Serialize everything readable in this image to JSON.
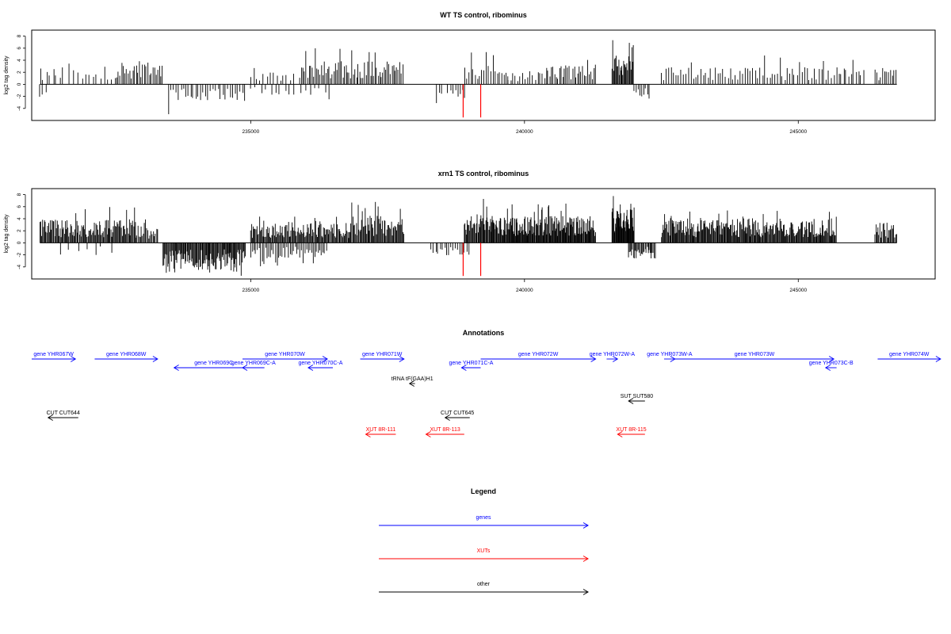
{
  "chart_data": [
    {
      "type": "bar",
      "title": "WT TS control, ribominus",
      "ylabel": "log2 tag density",
      "xlim": [
        231000,
        247500
      ],
      "ylim": [
        -6,
        9
      ],
      "yticks": [
        -4,
        -2,
        0,
        2,
        4,
        6,
        8
      ],
      "xticks": [
        235000,
        240000,
        245000
      ],
      "xticklabels": [
        "235000",
        "240000",
        "245000"
      ],
      "highlight_color": "#ff0000",
      "bar_color": "#000000",
      "highlights": [
        {
          "x": 238880,
          "y": -5.5
        },
        {
          "x": 239200,
          "y": -5.5
        }
      ],
      "segments": [
        {
          "x0": 231150,
          "x1": 231600,
          "strand": "plus",
          "max": 3.5,
          "mean": 2.0,
          "step": 60
        },
        {
          "x0": 231150,
          "x1": 231250,
          "strand": "minus",
          "max": -2.1,
          "mean": -1.8,
          "step": 50
        },
        {
          "x0": 231700,
          "x1": 232550,
          "strand": "plus",
          "max": 3.5,
          "mean": 1.7,
          "step": 70
        },
        {
          "x0": 232550,
          "x1": 233400,
          "strand": "plus",
          "max": 6.4,
          "mean": 2.6,
          "step": 30
        },
        {
          "x0": 233500,
          "x1": 234900,
          "strand": "minus",
          "max": -5.5,
          "mean": -1.9,
          "step": 45
        },
        {
          "x0": 235000,
          "x1": 235800,
          "strand": "plus",
          "max": 3.0,
          "mean": 1.5,
          "step": 60
        },
        {
          "x0": 235000,
          "x1": 236500,
          "strand": "minus",
          "max": -3.0,
          "mean": -1.2,
          "step": 90
        },
        {
          "x0": 235900,
          "x1": 237800,
          "strand": "plus",
          "max": 6.2,
          "mean": 2.6,
          "step": 28
        },
        {
          "x0": 238400,
          "x1": 238500,
          "strand": "minus",
          "max": -3.5,
          "mean": -2.5,
          "step": 40
        },
        {
          "x0": 238600,
          "x1": 238950,
          "strand": "minus",
          "max": -2.7,
          "mean": -1.5,
          "step": 45
        },
        {
          "x0": 238900,
          "x1": 239700,
          "strand": "plus",
          "max": 5.4,
          "mean": 2.1,
          "step": 40
        },
        {
          "x0": 239700,
          "x1": 240400,
          "strand": "plus",
          "max": 4.5,
          "mean": 1.5,
          "step": 45
        },
        {
          "x0": 240400,
          "x1": 241300,
          "strand": "plus",
          "max": 4.2,
          "mean": 2.3,
          "step": 30
        },
        {
          "x0": 241600,
          "x1": 242000,
          "strand": "plus",
          "max": 8.2,
          "mean": 3.7,
          "step": 15
        },
        {
          "x0": 242000,
          "x1": 242300,
          "strand": "minus",
          "max": -2.6,
          "mean": -1.6,
          "step": 35
        },
        {
          "x0": 242500,
          "x1": 246200,
          "strand": "plus",
          "max": 4.8,
          "mean": 1.9,
          "step": 45
        },
        {
          "x0": 246400,
          "x1": 246800,
          "strand": "plus",
          "max": 3.7,
          "mean": 1.8,
          "step": 35
        }
      ]
    },
    {
      "type": "bar",
      "title": "xrn1 TS control, ribominus",
      "ylabel": "log2 tag density",
      "xlim": [
        231000,
        247500
      ],
      "ylim": [
        -6,
        9
      ],
      "yticks": [
        -4,
        -2,
        0,
        2,
        4,
        6,
        8
      ],
      "xticks": [
        235000,
        240000,
        245000
      ],
      "xticklabels": [
        "235000",
        "240000",
        "245000"
      ],
      "highlight_color": "#ff0000",
      "bar_color": "#000000",
      "highlights": [
        {
          "x": 238880,
          "y": -5.5
        },
        {
          "x": 239200,
          "y": -5.5
        }
      ],
      "segments": [
        {
          "x0": 231150,
          "x1": 232900,
          "strand": "plus",
          "max": 6.2,
          "mean": 2.6,
          "step": 16
        },
        {
          "x0": 231500,
          "x1": 232600,
          "strand": "minus",
          "max": -2.3,
          "mean": -1.4,
          "step": 160
        },
        {
          "x0": 232900,
          "x1": 233300,
          "strand": "plus",
          "max": 4.0,
          "mean": 2.0,
          "step": 20
        },
        {
          "x0": 233400,
          "x1": 234900,
          "strand": "minus",
          "max": -5.5,
          "mean": -3.0,
          "step": 14
        },
        {
          "x0": 235000,
          "x1": 236800,
          "strand": "plus",
          "max": 4.5,
          "mean": 2.2,
          "step": 16
        },
        {
          "x0": 235000,
          "x1": 236400,
          "strand": "minus",
          "max": -4.0,
          "mean": -1.8,
          "step": 30
        },
        {
          "x0": 236800,
          "x1": 237800,
          "strand": "plus",
          "max": 7.0,
          "mean": 3.0,
          "step": 16
        },
        {
          "x0": 238300,
          "x1": 239000,
          "strand": "minus",
          "max": -3.8,
          "mean": -1.5,
          "step": 40
        },
        {
          "x0": 238900,
          "x1": 239400,
          "strand": "plus",
          "max": 8.0,
          "mean": 3.2,
          "step": 14
        },
        {
          "x0": 239400,
          "x1": 241300,
          "strand": "plus",
          "max": 6.6,
          "mean": 3.0,
          "step": 12
        },
        {
          "x0": 241600,
          "x1": 242000,
          "strand": "plus",
          "max": 8.4,
          "mean": 4.0,
          "step": 10
        },
        {
          "x0": 241900,
          "x1": 242400,
          "strand": "minus",
          "max": -3.1,
          "mean": -1.8,
          "step": 18
        },
        {
          "x0": 242500,
          "x1": 245700,
          "strand": "plus",
          "max": 5.4,
          "mean": 2.7,
          "step": 14
        },
        {
          "x0": 246400,
          "x1": 246800,
          "strand": "plus",
          "max": 3.8,
          "mean": 2.3,
          "step": 18
        }
      ]
    }
  ],
  "annotations": {
    "title": "Annotations",
    "features": [
      {
        "label": "gene YHR067W",
        "color": "#0000ff",
        "x0": 231000,
        "x1": 231800,
        "strand": "+",
        "row": 0
      },
      {
        "label": "gene YHR068W",
        "color": "#0000ff",
        "x0": 232150,
        "x1": 233300,
        "strand": "+",
        "row": 0
      },
      {
        "label": "gene YHR069C",
        "color": "#0000ff",
        "x0": 233600,
        "x1": 235050,
        "strand": "-",
        "row": 1
      },
      {
        "label": "gene YHR069C-A",
        "color": "#0000ff",
        "x0": 234850,
        "x1": 235250,
        "strand": "-",
        "row": 1
      },
      {
        "label": "gene YHR070W",
        "color": "#0000ff",
        "x0": 234850,
        "x1": 236400,
        "strand": "+",
        "row": 0
      },
      {
        "label": "gene YHR070C-A",
        "color": "#0000ff",
        "x0": 236050,
        "x1": 236500,
        "strand": "-",
        "row": 1
      },
      {
        "label": "gene YHR071W",
        "color": "#0000ff",
        "x0": 237000,
        "x1": 237800,
        "strand": "+",
        "row": 0
      },
      {
        "label": "gene YHR071C-A",
        "color": "#0000ff",
        "x0": 238850,
        "x1": 239200,
        "strand": "-",
        "row": 1
      },
      {
        "label": "gene YHR072W",
        "color": "#0000ff",
        "x0": 239200,
        "x1": 241300,
        "strand": "+",
        "row": 0
      },
      {
        "label": "gene YHR072W-A",
        "color": "#0000ff",
        "x0": 241500,
        "x1": 241700,
        "strand": "+",
        "row": 0
      },
      {
        "label": "gene YHR073W-A",
        "color": "#0000ff",
        "x0": 242550,
        "x1": 242750,
        "strand": "+",
        "row": 0
      },
      {
        "label": "gene YHR073W",
        "color": "#0000ff",
        "x0": 242750,
        "x1": 245650,
        "strand": "+",
        "row": 0
      },
      {
        "label": "gene YHR073C-B",
        "color": "#0000ff",
        "x0": 245500,
        "x1": 245700,
        "strand": "-",
        "row": 1
      },
      {
        "label": "gene YHR074W",
        "color": "#0000ff",
        "x0": 246450,
        "x1": 247600,
        "strand": "+",
        "row": 0
      },
      {
        "label": "tRNA tF(GAA)H1",
        "color": "#000000",
        "x0": 237900,
        "x1": 238000,
        "strand": "-",
        "row": 2
      },
      {
        "label": "SUT SUT580",
        "color": "#000000",
        "x0": 241900,
        "x1": 242200,
        "strand": "-",
        "row": 3
      },
      {
        "label": "CUT CUT644",
        "color": "#000000",
        "x0": 231300,
        "x1": 231850,
        "strand": "-",
        "row": 4
      },
      {
        "label": "CUT CUT645",
        "color": "#000000",
        "x0": 238550,
        "x1": 239000,
        "strand": "-",
        "row": 4
      },
      {
        "label": "XUT 8R-111",
        "color": "#ff0000",
        "x0": 237100,
        "x1": 237650,
        "strand": "-",
        "row": 5
      },
      {
        "label": "XUT 8R-113",
        "color": "#ff0000",
        "x0": 238200,
        "x1": 238900,
        "strand": "-",
        "row": 5
      },
      {
        "label": "XUT 8R-115",
        "color": "#ff0000",
        "x0": 241700,
        "x1": 242200,
        "strand": "-",
        "row": 5
      }
    ]
  },
  "legend": {
    "title": "Legend",
    "items": [
      {
        "label": "genes",
        "color": "#0000ff"
      },
      {
        "label": "XUTs",
        "color": "#ff0000"
      },
      {
        "label": "other",
        "color": "#000000"
      }
    ]
  }
}
